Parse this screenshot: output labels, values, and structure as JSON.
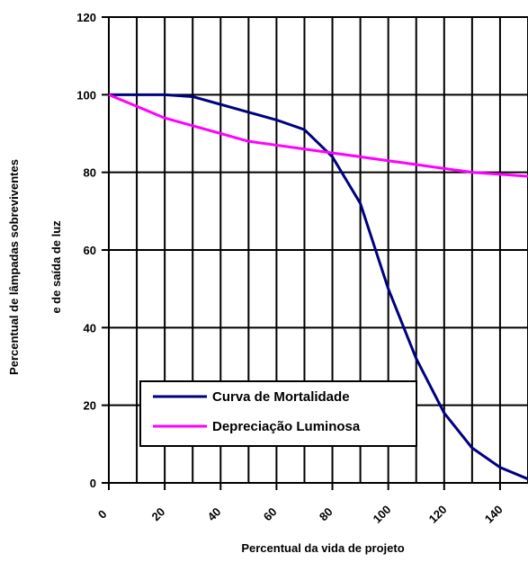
{
  "chart_data": {
    "type": "line",
    "title": "",
    "xlabel": "Percentual da vida de projeto",
    "ylabel_lines": [
      "Percentual de lâmpadas sobreviventes",
      "e de saída de luz"
    ],
    "xlim": [
      0,
      150
    ],
    "ylim": [
      0,
      120
    ],
    "x_ticks": [
      "0",
      "20",
      "40",
      "60",
      "80",
      "100",
      "120",
      "140"
    ],
    "y_ticks": [
      "0",
      "20",
      "40",
      "60",
      "80",
      "100",
      "120"
    ],
    "grid": {
      "horizontal": true,
      "vertical": true,
      "vertical_step": 10,
      "horizontal_step": 20
    },
    "legend_position": "lower-left",
    "series": [
      {
        "name": "Curva de Mortalidade",
        "color": "#000080",
        "x": [
          0,
          10,
          20,
          30,
          40,
          50,
          60,
          70,
          80,
          90,
          100,
          110,
          120,
          130,
          140,
          150
        ],
        "y": [
          100,
          100,
          100,
          99.5,
          97.5,
          95.5,
          93.5,
          91,
          84,
          72,
          50,
          32,
          18,
          9,
          4,
          1
        ]
      },
      {
        "name": "Depreciação Luminosa",
        "color": "#ff00ff",
        "x": [
          0,
          10,
          20,
          30,
          40,
          50,
          60,
          70,
          80,
          90,
          100,
          110,
          120,
          130,
          140,
          150
        ],
        "y": [
          100,
          97,
          94,
          92,
          90,
          88,
          87,
          86,
          85,
          84,
          83,
          82,
          81,
          80,
          79.5,
          79
        ]
      }
    ]
  }
}
